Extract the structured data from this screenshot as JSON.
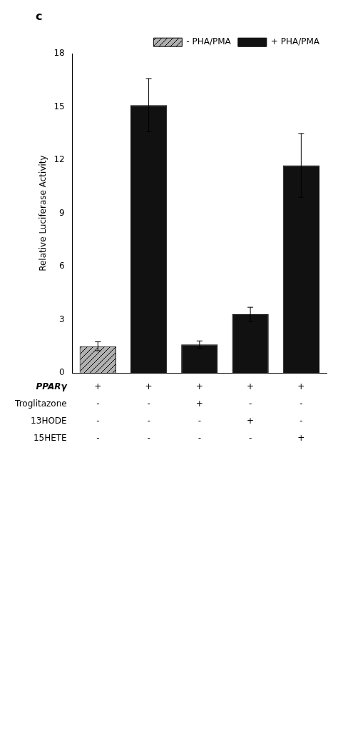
{
  "chart_data": {
    "type": "bar",
    "title": "c",
    "categories": [
      null,
      null,
      null,
      null,
      null
    ],
    "series": [
      {
        "name": "- PHA/PMA",
        "color": "#b0b0b0",
        "values": [
          1.5,
          null,
          null,
          null,
          null
        ],
        "errors": [
          0.25,
          null,
          null,
          null,
          null
        ]
      },
      {
        "name": "+ PHA/PMA",
        "color": "#111111",
        "values": [
          null,
          15.1,
          1.6,
          3.3,
          11.7
        ],
        "errors": [
          null,
          1.5,
          0.2,
          0.4,
          1.8
        ]
      }
    ],
    "ylabel": "Relative Luciferase Activity",
    "ylim": [
      0,
      18
    ],
    "yticks": [
      0,
      3,
      6,
      9,
      12,
      15,
      18
    ],
    "grid": false,
    "legend": "upper right",
    "tick_labels": "y",
    "table_rows": [
      {
        "name": "PPARγ",
        "values": [
          "+",
          "+",
          "+",
          "+",
          "+"
        ]
      },
      {
        "name": "Troglitazone",
        "values": [
          "-",
          "-",
          "+",
          "-",
          "-"
        ]
      },
      {
        "name": "13HODE",
        "values": [
          "-",
          "-",
          "-",
          "+",
          "-"
        ]
      },
      {
        "name": "15HETE",
        "values": [
          "-",
          "-",
          "-",
          "-",
          "+"
        ]
      }
    ]
  }
}
